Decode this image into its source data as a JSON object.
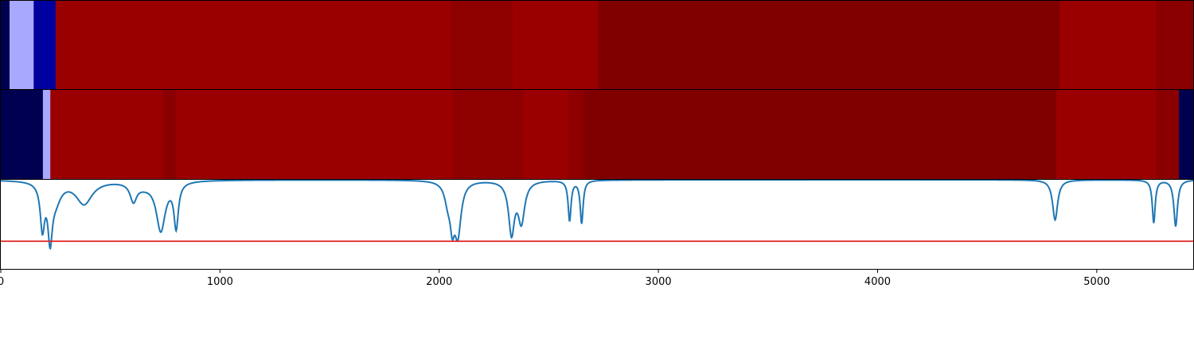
{
  "chart_data": [
    {
      "type": "heatmap",
      "xlim": [
        0,
        5440
      ],
      "colors": {
        "very_dark_blue": "#000050",
        "dark_blue": "#0000a0",
        "light_blue": "#a8a8ff",
        "red": "#9a0000",
        "dark_red": "#8a0000",
        "darker_red": "#800000"
      },
      "segments": [
        {
          "start": 0,
          "end": 40,
          "color": "#000050"
        },
        {
          "start": 40,
          "end": 150,
          "color": "#a8a8ff"
        },
        {
          "start": 150,
          "end": 250,
          "color": "#0000a0"
        },
        {
          "start": 250,
          "end": 2055,
          "color": "#9a0000"
        },
        {
          "start": 2055,
          "end": 2335,
          "color": "#8e0000"
        },
        {
          "start": 2335,
          "end": 2725,
          "color": "#9a0000"
        },
        {
          "start": 2725,
          "end": 4830,
          "color": "#800000"
        },
        {
          "start": 4830,
          "end": 5270,
          "color": "#9a0000"
        },
        {
          "start": 5270,
          "end": 5440,
          "color": "#8a0000"
        }
      ]
    },
    {
      "type": "heatmap",
      "xlim": [
        0,
        5440
      ],
      "segments": [
        {
          "start": 0,
          "end": 192,
          "color": "#000050"
        },
        {
          "start": 192,
          "end": 226,
          "color": "#a8a8ff"
        },
        {
          "start": 226,
          "end": 740,
          "color": "#9a0000"
        },
        {
          "start": 740,
          "end": 800,
          "color": "#8a0000"
        },
        {
          "start": 800,
          "end": 2060,
          "color": "#9a0000"
        },
        {
          "start": 2060,
          "end": 2385,
          "color": "#8e0000"
        },
        {
          "start": 2385,
          "end": 2590,
          "color": "#9a0000"
        },
        {
          "start": 2590,
          "end": 2660,
          "color": "#8e0000"
        },
        {
          "start": 2660,
          "end": 4815,
          "color": "#800000"
        },
        {
          "start": 4815,
          "end": 5270,
          "color": "#9a0000"
        },
        {
          "start": 5270,
          "end": 5375,
          "color": "#8a0000"
        },
        {
          "start": 5375,
          "end": 5440,
          "color": "#000050"
        }
      ]
    },
    {
      "type": "line",
      "xlim": [
        0,
        5440
      ],
      "ylim": [
        0,
        1
      ],
      "baseline": 1.0,
      "threshold": {
        "y": 0.31,
        "color": "#e02020"
      },
      "line_color": "#1f77b4",
      "dips": [
        {
          "x": 190,
          "depth": 0.5,
          "width": 12
        },
        {
          "x": 225,
          "depth": 0.58,
          "width": 12
        },
        {
          "x": 250,
          "depth": 0.2,
          "width": 30
        },
        {
          "x": 380,
          "depth": 0.26,
          "width": 45
        },
        {
          "x": 605,
          "depth": 0.2,
          "width": 18
        },
        {
          "x": 650,
          "depth": 0.05,
          "width": 50
        },
        {
          "x": 730,
          "depth": 0.55,
          "width": 25
        },
        {
          "x": 800,
          "depth": 0.5,
          "width": 12
        },
        {
          "x": 2040,
          "depth": 0.2,
          "width": 18
        },
        {
          "x": 2060,
          "depth": 0.38,
          "width": 12
        },
        {
          "x": 2085,
          "depth": 0.58,
          "width": 18
        },
        {
          "x": 2330,
          "depth": 0.58,
          "width": 16
        },
        {
          "x": 2375,
          "depth": 0.45,
          "width": 18
        },
        {
          "x": 2595,
          "depth": 0.45,
          "width": 8
        },
        {
          "x": 2650,
          "depth": 0.48,
          "width": 8
        },
        {
          "x": 4810,
          "depth": 0.45,
          "width": 14
        },
        {
          "x": 5260,
          "depth": 0.48,
          "width": 8
        },
        {
          "x": 5360,
          "depth": 0.52,
          "width": 10
        }
      ]
    }
  ],
  "x_axis": {
    "ticks": [
      0,
      1000,
      2000,
      3000,
      4000,
      5000
    ],
    "tick_labels": [
      "0",
      "1000",
      "2000",
      "3000",
      "4000",
      "5000"
    ]
  }
}
